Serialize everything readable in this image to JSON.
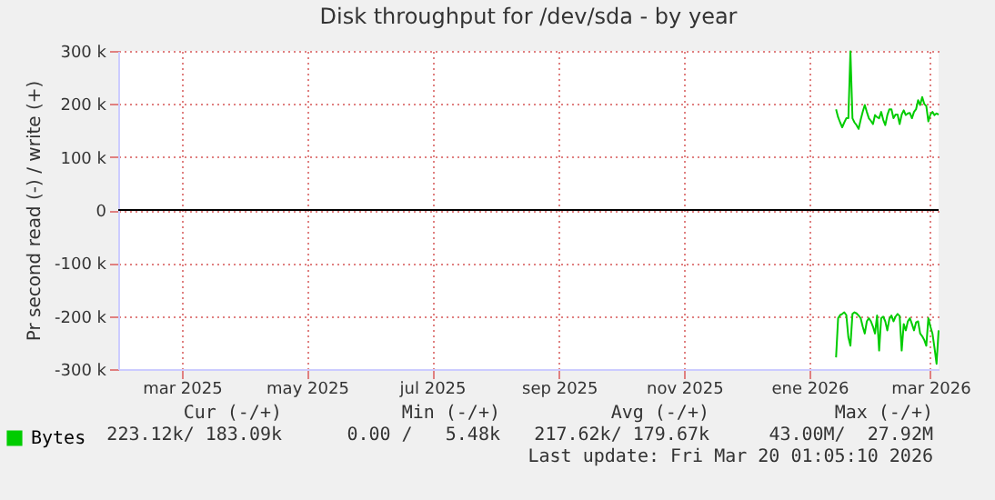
{
  "chart_data": {
    "type": "line",
    "title": "Disk throughput for /dev/sda - by year",
    "ylabel": "Pr second read (-) / write (+)",
    "x": [
      "2026-01-29",
      "2026-01-30",
      "2026-01-31",
      "2026-02-01",
      "2026-02-02",
      "2026-02-03",
      "2026-02-04",
      "2026-02-05",
      "2026-02-06",
      "2026-02-07",
      "2026-02-08",
      "2026-02-09",
      "2026-02-10",
      "2026-02-11",
      "2026-02-12",
      "2026-02-13",
      "2026-02-14",
      "2026-02-15",
      "2026-02-16",
      "2026-02-17",
      "2026-02-18",
      "2026-02-19",
      "2026-02-20",
      "2026-02-21",
      "2026-02-22",
      "2026-02-23",
      "2026-02-24",
      "2026-02-25",
      "2026-02-26",
      "2026-02-27",
      "2026-02-28",
      "2026-03-01",
      "2026-03-02",
      "2026-03-03",
      "2026-03-04",
      "2026-03-05",
      "2026-03-06",
      "2026-03-07",
      "2026-03-08",
      "2026-03-09",
      "2026-03-10",
      "2026-03-11",
      "2026-03-12",
      "2026-03-13",
      "2026-03-14",
      "2026-03-15",
      "2026-03-16",
      "2026-03-17",
      "2026-03-18",
      "2026-03-19",
      "2026-03-20"
    ],
    "series": [
      {
        "name": "Bytes",
        "color": "#00cc00",
        "values": [
          -278000,
          -204000,
          -198000,
          -196000,
          -193000,
          -198000,
          -240000,
          -256000,
          -196000,
          -193000,
          -195000,
          -199000,
          -204000,
          -220000,
          -233000,
          -210000,
          -204000,
          -210000,
          -220000,
          -233000,
          -199000,
          -265000,
          -204000,
          -201000,
          -210000,
          -227000,
          -205000,
          -199000,
          -210000,
          -201000,
          -196000,
          -200000,
          -265000,
          -215000,
          -227000,
          -210000,
          -204000,
          -215000,
          -227000,
          -212000,
          -210000,
          -233000,
          -238000,
          -245000,
          -256000,
          -204000,
          -220000,
          -233000,
          -260000,
          -290000,
          -227000
        ]
      },
      {
        "color": "#00cc00",
        "values": [
          190000,
          175000,
          165000,
          156000,
          165000,
          173000,
          173000,
          299000,
          173000,
          165000,
          160000,
          153000,
          170000,
          185000,
          198000,
          185000,
          173000,
          168000,
          162000,
          179000,
          175000,
          173000,
          185000,
          170000,
          160000,
          179000,
          190000,
          190000,
          173000,
          180000,
          180000,
          162000,
          180000,
          188000,
          179000,
          182000,
          183000,
          173000,
          185000,
          190000,
          207000,
          198000,
          213000,
          200000,
          196000,
          167000,
          180000,
          185000,
          179000,
          182000,
          180000
        ]
      }
    ],
    "xlim": [
      "2025-02-13",
      "2026-03-20"
    ],
    "xticks": [
      {
        "value": "2025-03-16",
        "label": "mar 2025"
      },
      {
        "value": "2025-05-16",
        "label": "may 2025"
      },
      {
        "value": "2025-07-16",
        "label": "jul 2025"
      },
      {
        "value": "2025-09-16",
        "label": "sep 2025"
      },
      {
        "value": "2025-11-16",
        "label": "nov 2025"
      },
      {
        "value": "2026-01-16",
        "label": "ene 2026"
      },
      {
        "value": "2026-03-16",
        "label": "mar 2026"
      }
    ],
    "ylim": [
      -300000,
      300000
    ],
    "yticks": [
      {
        "value": -300000,
        "label": "-300 k"
      },
      {
        "value": -200000,
        "label": "-200 k"
      },
      {
        "value": -100000,
        "label": "-100 k"
      },
      0,
      {
        "value": 100000,
        "label": "100 k"
      },
      {
        "value": 200000,
        "label": "200 k"
      },
      {
        "value": 300000,
        "label": "300 k"
      }
    ],
    "ref_lines": [
      {
        "axis": "y",
        "value": 0,
        "color": "#000000"
      }
    ],
    "grid": true,
    "legend": "bottom left",
    "line_style": "solid",
    "annotations": [
      "Cur (-/+)",
      "Min (-/+)",
      "Avg (-/+)",
      "Max (-/+)",
      "223.12k/ 183.09k",
      "0.00 /   5.48k",
      "217.62k/ 179.67k",
      "43.00M/  27.92M",
      "Last update: Fri Mar 20 01:05:10 2026"
    ]
  }
}
